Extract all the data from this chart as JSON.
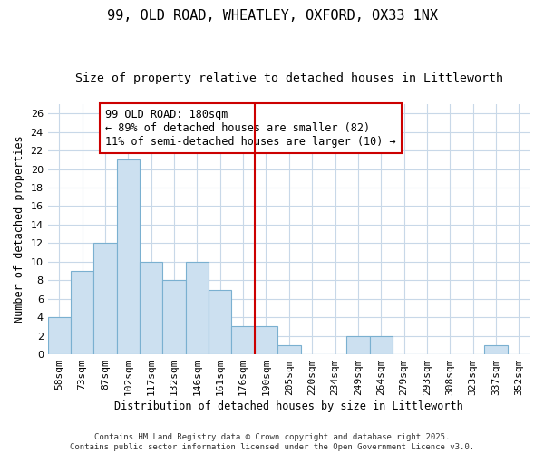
{
  "title": "99, OLD ROAD, WHEATLEY, OXFORD, OX33 1NX",
  "subtitle": "Size of property relative to detached houses in Littleworth",
  "xlabel": "Distribution of detached houses by size in Littleworth",
  "ylabel": "Number of detached properties",
  "categories": [
    "58sqm",
    "73sqm",
    "87sqm",
    "102sqm",
    "117sqm",
    "132sqm",
    "146sqm",
    "161sqm",
    "176sqm",
    "190sqm",
    "205sqm",
    "220sqm",
    "234sqm",
    "249sqm",
    "264sqm",
    "279sqm",
    "293sqm",
    "308sqm",
    "323sqm",
    "337sqm",
    "352sqm"
  ],
  "values": [
    4,
    9,
    12,
    21,
    10,
    8,
    10,
    7,
    3,
    3,
    1,
    0,
    0,
    2,
    2,
    0,
    0,
    0,
    0,
    1,
    0
  ],
  "bar_color": "#cce0f0",
  "bar_edgecolor": "#7ab0d0",
  "marker_index": 8,
  "marker_color": "#cc0000",
  "annotation_text": "99 OLD ROAD: 180sqm\n← 89% of detached houses are smaller (82)\n11% of semi-detached houses are larger (10) →",
  "annotation_box_color": "#ffffff",
  "annotation_box_edgecolor": "#cc0000",
  "ylim": [
    0,
    27
  ],
  "yticks": [
    0,
    2,
    4,
    6,
    8,
    10,
    12,
    14,
    16,
    18,
    20,
    22,
    24,
    26
  ],
  "background_color": "#ffffff",
  "grid_color": "#c8d8e8",
  "footer_text": "Contains HM Land Registry data © Crown copyright and database right 2025.\nContains public sector information licensed under the Open Government Licence v3.0.",
  "title_fontsize": 11,
  "subtitle_fontsize": 9.5,
  "axis_label_fontsize": 8.5,
  "tick_fontsize": 8,
  "annotation_fontsize": 8.5,
  "footer_fontsize": 6.5
}
